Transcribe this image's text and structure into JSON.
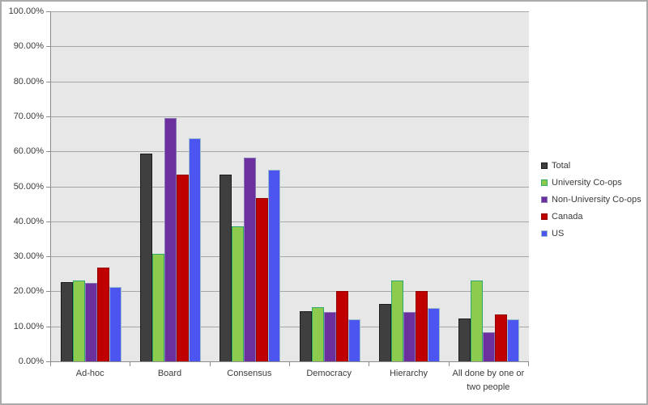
{
  "frame": {
    "background": "#FFFFFF",
    "border_color": "#ABABAB"
  },
  "chart_data": {
    "type": "bar",
    "title": "",
    "xlabel": "",
    "ylabel": "",
    "ylim": [
      0,
      100
    ],
    "ytick_step": 10,
    "y_tick_labels": [
      "0.00%",
      "10.00%",
      "20.00%",
      "30.00%",
      "40.00%",
      "50.00%",
      "60.00%",
      "70.00%",
      "80.00%",
      "90.00%",
      "100.00%"
    ],
    "grid": true,
    "legend_position": "right",
    "plot_bg_color": "#E7E7E7",
    "gridline_color": "#A6A6A6",
    "axis_color": "#8C8C8C",
    "text_color": "#3B3B3B",
    "categories": [
      "Ad-hoc",
      "Board",
      "Consensus",
      "Democracy",
      "Hierarchy",
      "All done by one or two people"
    ],
    "series": [
      {
        "name": "Total",
        "color": "#3F3F3F",
        "border_color": "#1C1C1C",
        "values": [
          22.6,
          59.4,
          53.4,
          14.4,
          16.5,
          12.3
        ]
      },
      {
        "name": "University Co-ops",
        "color": "#8DCB4F",
        "border_color": "#2FA96B",
        "values": [
          23.1,
          30.8,
          38.5,
          15.4,
          23.1,
          23.1
        ]
      },
      {
        "name": "Non-University Co-ops",
        "color": "#6C309E",
        "border_color": "#8878B5",
        "values": [
          22.4,
          69.6,
          58.3,
          14.0,
          14.0,
          8.4
        ]
      },
      {
        "name": "Canada",
        "color": "#C00000",
        "border_color": "#900000",
        "values": [
          26.7,
          53.3,
          46.7,
          20.0,
          20.0,
          13.3
        ]
      },
      {
        "name": "US",
        "color": "#4D55F0",
        "border_color": "#9CBECC",
        "values": [
          21.3,
          63.8,
          54.7,
          12.1,
          15.2,
          12.1
        ]
      }
    ]
  }
}
